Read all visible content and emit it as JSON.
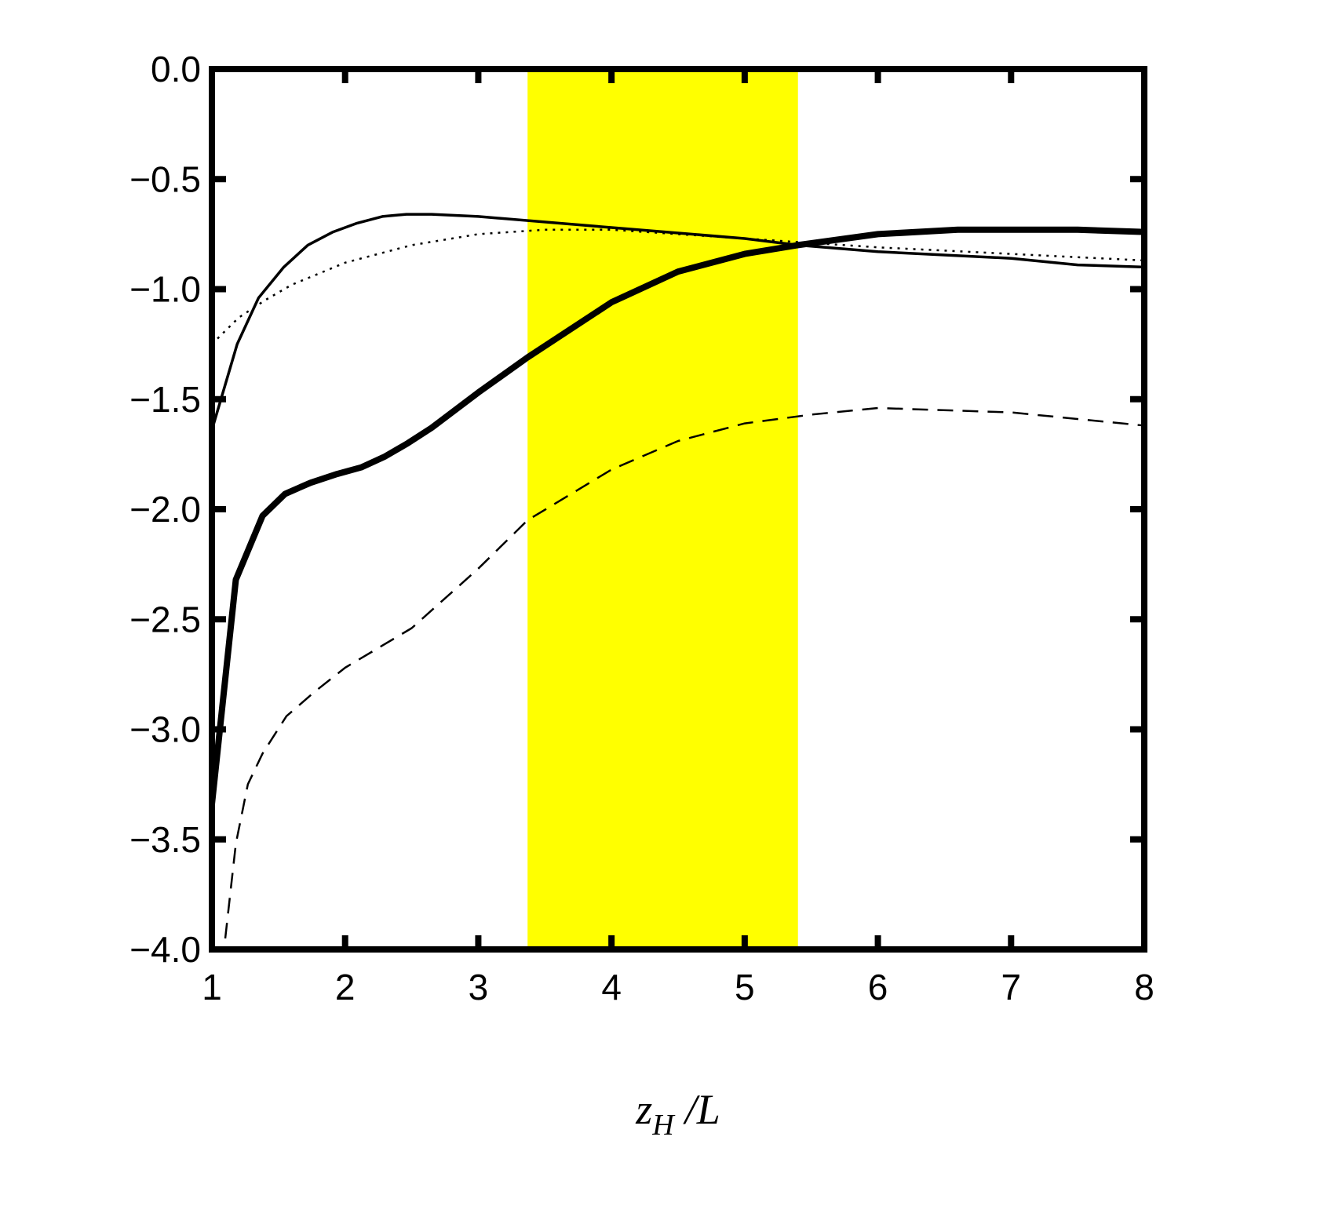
{
  "chart_data": {
    "type": "line",
    "xlabel": [
      "z",
      "H",
      "/L"
    ],
    "xlim": [
      1,
      8
    ],
    "xticks": [
      1,
      2,
      3,
      4,
      5,
      6,
      7,
      8
    ],
    "ylim": [
      -4,
      0
    ],
    "yticks": [
      {
        "value": 0,
        "label": "0.0"
      },
      {
        "value": -0.5,
        "label": "−0.5"
      },
      {
        "value": -1,
        "label": "−1.0"
      },
      {
        "value": -1.5,
        "label": "−1.5"
      },
      {
        "value": -2,
        "label": "−2.0"
      },
      {
        "value": -2.5,
        "label": "−2.5"
      },
      {
        "value": -3,
        "label": "−3.0"
      },
      {
        "value": -3.5,
        "label": "−3.5"
      },
      {
        "value": -4,
        "label": "−4.0"
      }
    ],
    "highlight": {
      "xrange": [
        3.37,
        5.4
      ],
      "color": "#ffff00"
    },
    "series": [
      {
        "color": "#000000",
        "linewidth": 3.5,
        "linestyle": "solid",
        "x": [
          1,
          1.19,
          1.35,
          1.54,
          1.72,
          1.91,
          2.09,
          2.28,
          2.46,
          2.65,
          3,
          4,
          5,
          5.4,
          6,
          7,
          7.5,
          8
        ],
        "values": [
          -1.64,
          -1.25,
          -1.04,
          -0.9,
          -0.8,
          -0.74,
          -0.7,
          -0.67,
          -0.66,
          -0.66,
          -0.67,
          -0.72,
          -0.77,
          -0.8,
          -0.83,
          -0.86,
          -0.89,
          -0.9
        ]
      },
      {
        "color": "#000000",
        "linewidth": 2.5,
        "linestyle": "dotted",
        "x": [
          1,
          1.2,
          1.4,
          1.6,
          1.8,
          2,
          2.5,
          3,
          3.5,
          4,
          4.5,
          5,
          6,
          7,
          8
        ],
        "values": [
          -1.25,
          -1.13,
          -1.05,
          -0.98,
          -0.93,
          -0.88,
          -0.8,
          -0.75,
          -0.73,
          -0.73,
          -0.75,
          -0.77,
          -0.81,
          -0.84,
          -0.87
        ]
      },
      {
        "color": "#000000",
        "linewidth": 8,
        "linestyle": "solid",
        "x": [
          1,
          1.18,
          1.38,
          1.55,
          1.74,
          1.94,
          2.12,
          2.3,
          2.47,
          2.65,
          3,
          3.37,
          4,
          4.5,
          5,
          5.4,
          6,
          6.6,
          7.5,
          8
        ],
        "values": [
          -3.34,
          -2.32,
          -2.03,
          -1.93,
          -1.88,
          -1.84,
          -1.81,
          -1.76,
          -1.7,
          -1.63,
          -1.47,
          -1.31,
          -1.06,
          -0.92,
          -0.84,
          -0.8,
          -0.75,
          -0.73,
          -0.73,
          -0.74
        ]
      },
      {
        "color": "#000000",
        "linewidth": 2.5,
        "linestyle": "dashed",
        "x": [
          1.1,
          1.18,
          1.27,
          1.38,
          1.56,
          1.77,
          2,
          2.5,
          3,
          3.37,
          4,
          4.5,
          5,
          5.5,
          6,
          7,
          8
        ],
        "values": [
          -3.95,
          -3.52,
          -3.25,
          -3.11,
          -2.94,
          -2.83,
          -2.72,
          -2.54,
          -2.27,
          -2.05,
          -1.82,
          -1.69,
          -1.61,
          -1.57,
          -1.54,
          -1.56,
          -1.62
        ]
      }
    ]
  }
}
